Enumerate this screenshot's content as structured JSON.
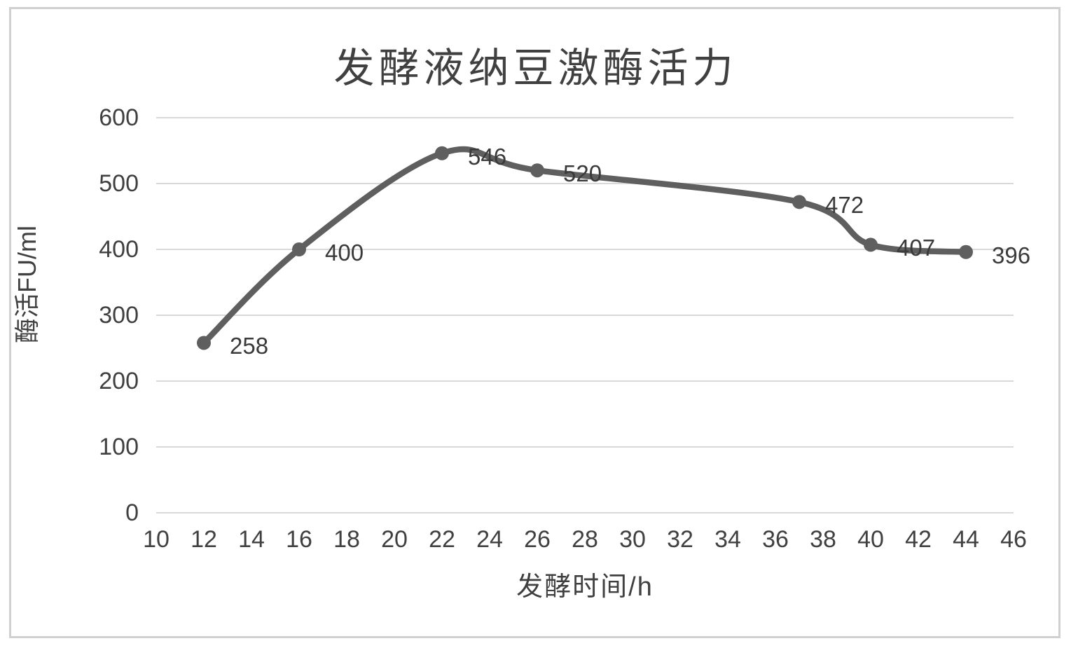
{
  "chart_data": {
    "type": "line",
    "title": "发酵液纳豆激酶活力",
    "xlabel": "发酵时间/h",
    "ylabel": "酶活FU/ml",
    "x": [
      12,
      16,
      22,
      26,
      37,
      40,
      44
    ],
    "values": [
      258,
      400,
      546,
      520,
      472,
      407,
      396
    ],
    "point_labels": [
      "258",
      "400",
      "546",
      "520",
      "472",
      "407",
      "396"
    ],
    "xlim": [
      10,
      46
    ],
    "ylim": [
      0,
      600
    ],
    "x_ticks": [
      10,
      12,
      14,
      16,
      18,
      20,
      22,
      24,
      26,
      28,
      30,
      32,
      34,
      36,
      38,
      40,
      42,
      44,
      46
    ],
    "y_ticks": [
      0,
      100,
      200,
      300,
      400,
      500,
      600
    ],
    "grid": "horizontal-only",
    "smooth": true,
    "marker": "circle",
    "legend": "none",
    "colors": {
      "line": "#5f5f5f",
      "marker": "#5f5f5f",
      "grid": "#d9d9d9",
      "axis_text": "#404040",
      "data_label_text": "#3a3a3a",
      "title_text": "#404040",
      "frame_border": "#d0d0d0",
      "background": "#ffffff"
    }
  }
}
